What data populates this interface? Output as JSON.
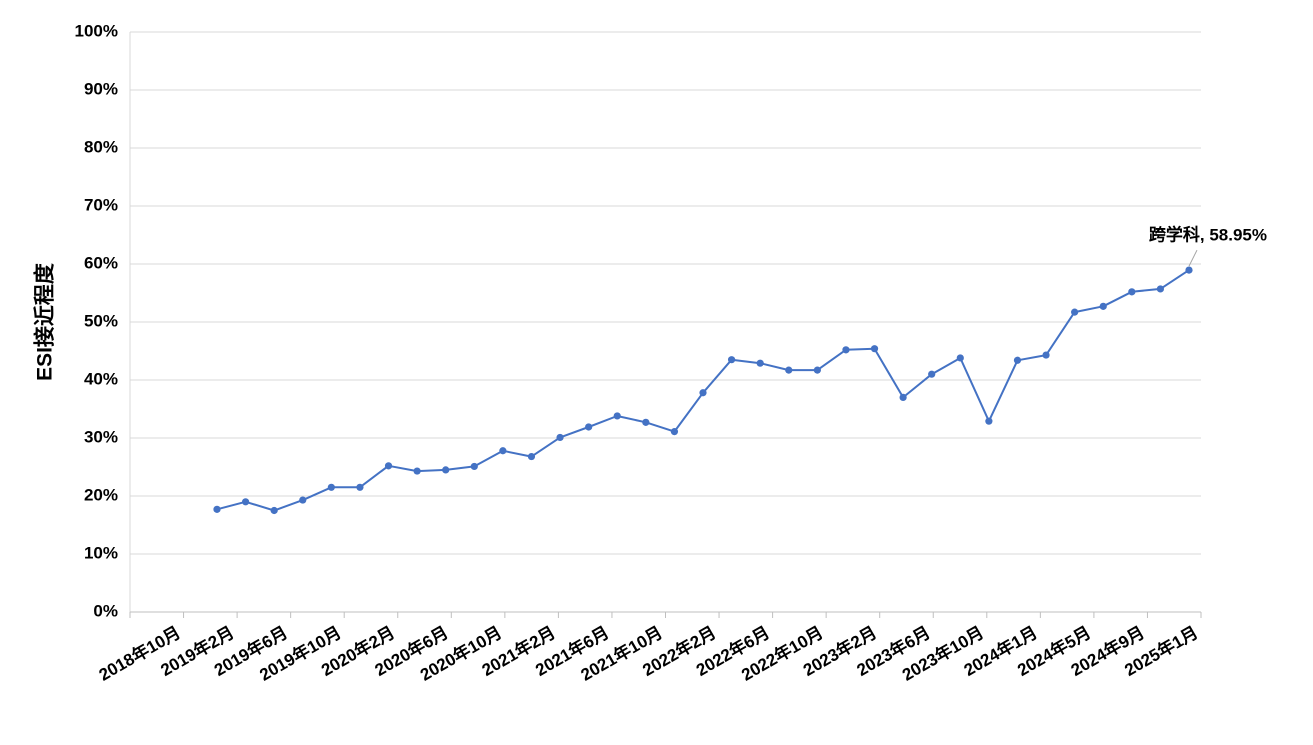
{
  "chart_data": {
    "type": "line",
    "ylabel": "ESI接近程度",
    "xlabel": "",
    "ylim": [
      0,
      100
    ],
    "y_unit": "%",
    "y_ticks": [
      "0%",
      "10%",
      "20%",
      "30%",
      "40%",
      "50%",
      "60%",
      "70%",
      "80%",
      "90%",
      "100%"
    ],
    "x_tick_labels": [
      "2018年10月",
      "2019年2月",
      "2019年6月",
      "2019年10月",
      "2020年2月",
      "2020年6月",
      "2020年10月",
      "2021年2月",
      "2021年6月",
      "2021年10月",
      "2022年2月",
      "2022年6月",
      "2022年10月",
      "2023年2月",
      "2023年6月",
      "2023年10月",
      "2024年1月",
      "2024年5月",
      "2024年9月",
      "2025年1月"
    ],
    "grid": true,
    "series": [
      {
        "name": "跨学科",
        "color": "#4472C4",
        "values": [
          17.7,
          19.0,
          17.5,
          19.3,
          21.5,
          21.5,
          25.2,
          24.3,
          24.5,
          25.1,
          27.8,
          26.8,
          30.1,
          31.9,
          33.8,
          32.7,
          31.1,
          37.8,
          43.5,
          42.9,
          41.7,
          41.7,
          45.2,
          45.4,
          37.0,
          41.0,
          43.8,
          32.9,
          43.4,
          44.3,
          51.7,
          52.7,
          55.2,
          55.7,
          58.95
        ]
      }
    ],
    "annotation": {
      "text": "跨学科, 58.95%"
    }
  }
}
